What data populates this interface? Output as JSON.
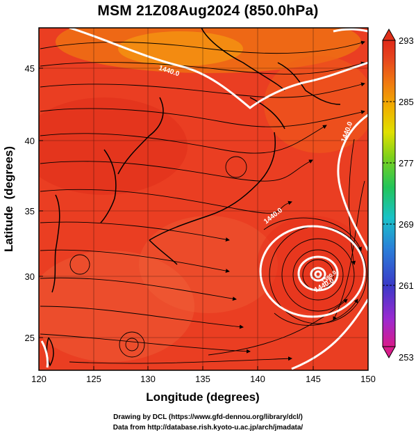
{
  "title": "MSM 21Z08Aug2024 (850.0hPa)",
  "x_axis": {
    "label": "Longitude (degrees)",
    "ticks": [
      "120",
      "125",
      "130",
      "135",
      "140",
      "145",
      "150"
    ],
    "range": [
      120,
      150
    ]
  },
  "y_axis": {
    "label": "Latitude  (degrees)",
    "ticks": [
      "25",
      "30",
      "35",
      "40",
      "45"
    ],
    "range": [
      22.4,
      47.6
    ]
  },
  "colorbar": {
    "labels": [
      "293",
      "285",
      "277",
      "269",
      "261",
      "253"
    ],
    "range": [
      253,
      293
    ],
    "colors": [
      "#d81b8a",
      "#9b2ad0",
      "#3a3ac8",
      "#2a7fd8",
      "#19c2c8",
      "#22c45a",
      "#7fd11a",
      "#e0e000",
      "#f0b000",
      "#f07a10",
      "#e6451e",
      "#e02a1a"
    ]
  },
  "contour_labels": [
    "1440.0",
    "1440.0",
    "1440.0",
    "1440.0",
    "1380.0"
  ],
  "credits": [
    "Drawing by DCL (https://www.gfd-dennou.org/library/dcl/)",
    "Data from http://database.rish.kyoto-u.ac.jp/arch/jmadata/"
  ]
}
